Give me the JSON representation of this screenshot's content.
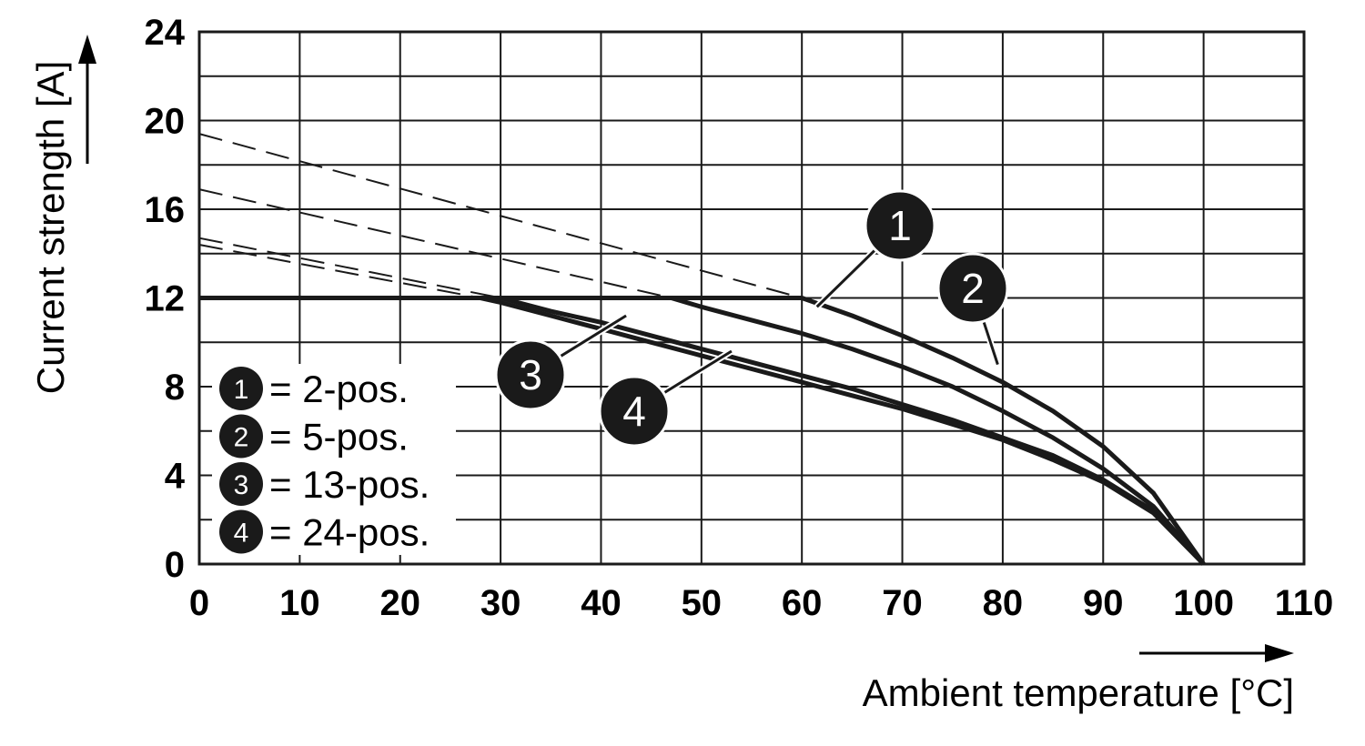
{
  "chart_data": {
    "type": "line",
    "xlabel": "Ambient temperature [°C]",
    "ylabel": "Current strength [A]",
    "xlim": [
      0,
      110
    ],
    "ylim": [
      0,
      24
    ],
    "x_ticks": [
      "0",
      "10",
      "20",
      "30",
      "40",
      "50",
      "60",
      "70",
      "80",
      "90",
      "100",
      "110"
    ],
    "y_ticks": [
      "0",
      "4",
      "8",
      "12",
      "16",
      "20",
      "24"
    ],
    "x_minor_step": 10,
    "y_minor_step": 2,
    "grid": true,
    "current_limit": 12,
    "colors": {
      "line": "#1a1a1a",
      "grid": "#1a1a1a",
      "background": "#ffffff"
    },
    "series": [
      {
        "marker": "1",
        "label": "2-pos.",
        "points": [
          [
            60,
            12
          ],
          [
            65,
            11.2
          ],
          [
            70,
            10.3
          ],
          [
            75,
            9.3
          ],
          [
            80,
            8.2
          ],
          [
            85,
            6.9
          ],
          [
            90,
            5.3
          ],
          [
            95,
            3.2
          ],
          [
            100,
            0
          ]
        ],
        "dashed_points": [
          [
            0,
            19.4
          ],
          [
            60,
            12
          ]
        ]
      },
      {
        "marker": "2",
        "label": "5-pos.",
        "points": [
          [
            47,
            12
          ],
          [
            50,
            11.6
          ],
          [
            55,
            11.0
          ],
          [
            60,
            10.4
          ],
          [
            65,
            9.7
          ],
          [
            70,
            8.9
          ],
          [
            75,
            8.0
          ],
          [
            80,
            6.9
          ],
          [
            85,
            5.7
          ],
          [
            90,
            4.3
          ],
          [
            95,
            2.6
          ],
          [
            100,
            0
          ]
        ],
        "dashed_points": [
          [
            0,
            16.9
          ],
          [
            47,
            12
          ]
        ]
      },
      {
        "marker": "3",
        "label": "13-pos.",
        "points": [
          [
            30,
            12
          ],
          [
            35,
            11.4
          ],
          [
            40,
            10.9
          ],
          [
            45,
            10.3
          ],
          [
            50,
            9.7
          ],
          [
            55,
            9.1
          ],
          [
            60,
            8.5
          ],
          [
            65,
            7.9
          ],
          [
            70,
            7.2
          ],
          [
            75,
            6.5
          ],
          [
            80,
            5.7
          ],
          [
            85,
            4.9
          ],
          [
            90,
            3.8
          ],
          [
            95,
            2.4
          ],
          [
            100,
            0
          ]
        ],
        "dashed_points": [
          [
            0,
            14.7
          ],
          [
            30,
            12
          ]
        ]
      },
      {
        "marker": "4",
        "label": "24-pos.",
        "points": [
          [
            28,
            12
          ],
          [
            30,
            11.8
          ],
          [
            35,
            11.2
          ],
          [
            40,
            10.6
          ],
          [
            45,
            10.0
          ],
          [
            50,
            9.4
          ],
          [
            55,
            8.8
          ],
          [
            60,
            8.2
          ],
          [
            65,
            7.6
          ],
          [
            70,
            7.0
          ],
          [
            75,
            6.3
          ],
          [
            80,
            5.6
          ],
          [
            85,
            4.7
          ],
          [
            90,
            3.7
          ],
          [
            95,
            2.3
          ],
          [
            100,
            0
          ]
        ],
        "dashed_points": [
          [
            0,
            14.4
          ],
          [
            28,
            12
          ]
        ]
      }
    ],
    "callouts": [
      {
        "marker": "1",
        "anchor": [
          61.5,
          11.6
        ]
      },
      {
        "marker": "2",
        "anchor": [
          79.5,
          9.0
        ]
      },
      {
        "marker": "3",
        "anchor": [
          42.5,
          11.2
        ]
      },
      {
        "marker": "4",
        "anchor": [
          53,
          9.6
        ]
      }
    ],
    "legend": [
      {
        "marker": "1",
        "text": "= 2-pos."
      },
      {
        "marker": "2",
        "text": "= 5-pos."
      },
      {
        "marker": "3",
        "text": "= 13-pos."
      },
      {
        "marker": "4",
        "text": "= 24-pos."
      }
    ],
    "legend_placement": "bottom-left"
  }
}
